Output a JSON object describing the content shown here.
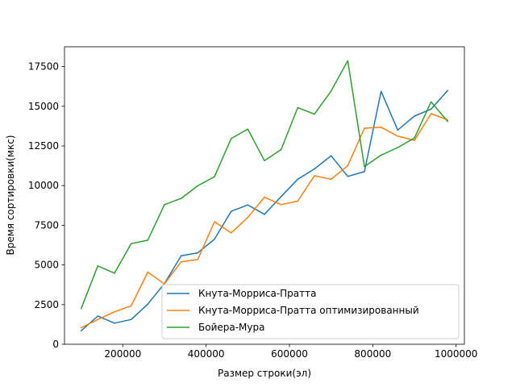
{
  "chart_data": {
    "type": "line",
    "title": "",
    "xlabel": "Размер строки(эл)",
    "ylabel": "Время сортировки(мкс)",
    "xlim": [
      60000,
      1020000
    ],
    "ylim": [
      0,
      18750
    ],
    "x_ticks": [
      {
        "value": 200000,
        "label": "200000"
      },
      {
        "value": 400000,
        "label": "400000"
      },
      {
        "value": 600000,
        "label": "600000"
      },
      {
        "value": 800000,
        "label": "800000"
      },
      {
        "value": 1000000,
        "label": "1000000"
      }
    ],
    "y_ticks": [
      {
        "value": 0,
        "label": "0"
      },
      {
        "value": 2500,
        "label": "2500"
      },
      {
        "value": 5000,
        "label": "5000"
      },
      {
        "value": 7500,
        "label": "7500"
      },
      {
        "value": 10000,
        "label": "10000"
      },
      {
        "value": 12500,
        "label": "12500"
      },
      {
        "value": 15000,
        "label": "15000"
      },
      {
        "value": 17500,
        "label": "17500"
      }
    ],
    "grid": false,
    "legend_position": "lower-right",
    "x": [
      100000,
      140000,
      180000,
      220000,
      260000,
      300000,
      340000,
      380000,
      420000,
      460000,
      500000,
      540000,
      580000,
      620000,
      660000,
      700000,
      740000,
      780000,
      820000,
      860000,
      900000,
      940000,
      980000
    ],
    "series": [
      {
        "name": "Кнута-Морриса-Пратта",
        "color": "#1f77b4",
        "values": [
          850,
          1780,
          1330,
          1560,
          2530,
          3830,
          5580,
          5760,
          6620,
          8380,
          8780,
          8190,
          9310,
          10400,
          11050,
          11880,
          10580,
          10880,
          15940,
          13500,
          14380,
          14820,
          16000
        ]
      },
      {
        "name": "Кнута-Морриса-Пратта оптимизированный",
        "color": "#ff7f0e",
        "values": [
          1040,
          1560,
          2050,
          2420,
          4550,
          3800,
          5200,
          5340,
          7720,
          7020,
          7990,
          9270,
          8800,
          9020,
          10620,
          10400,
          11250,
          13620,
          13680,
          13120,
          12850,
          14530,
          14140
        ]
      },
      {
        "name": "Бойера-Мура",
        "color": "#2ca02c",
        "values": [
          2250,
          4940,
          4480,
          6340,
          6560,
          8800,
          9190,
          9990,
          10560,
          12960,
          13560,
          11570,
          12270,
          14920,
          14500,
          15960,
          17870,
          11200,
          11920,
          12400,
          13000,
          15280,
          14040
        ]
      }
    ]
  }
}
